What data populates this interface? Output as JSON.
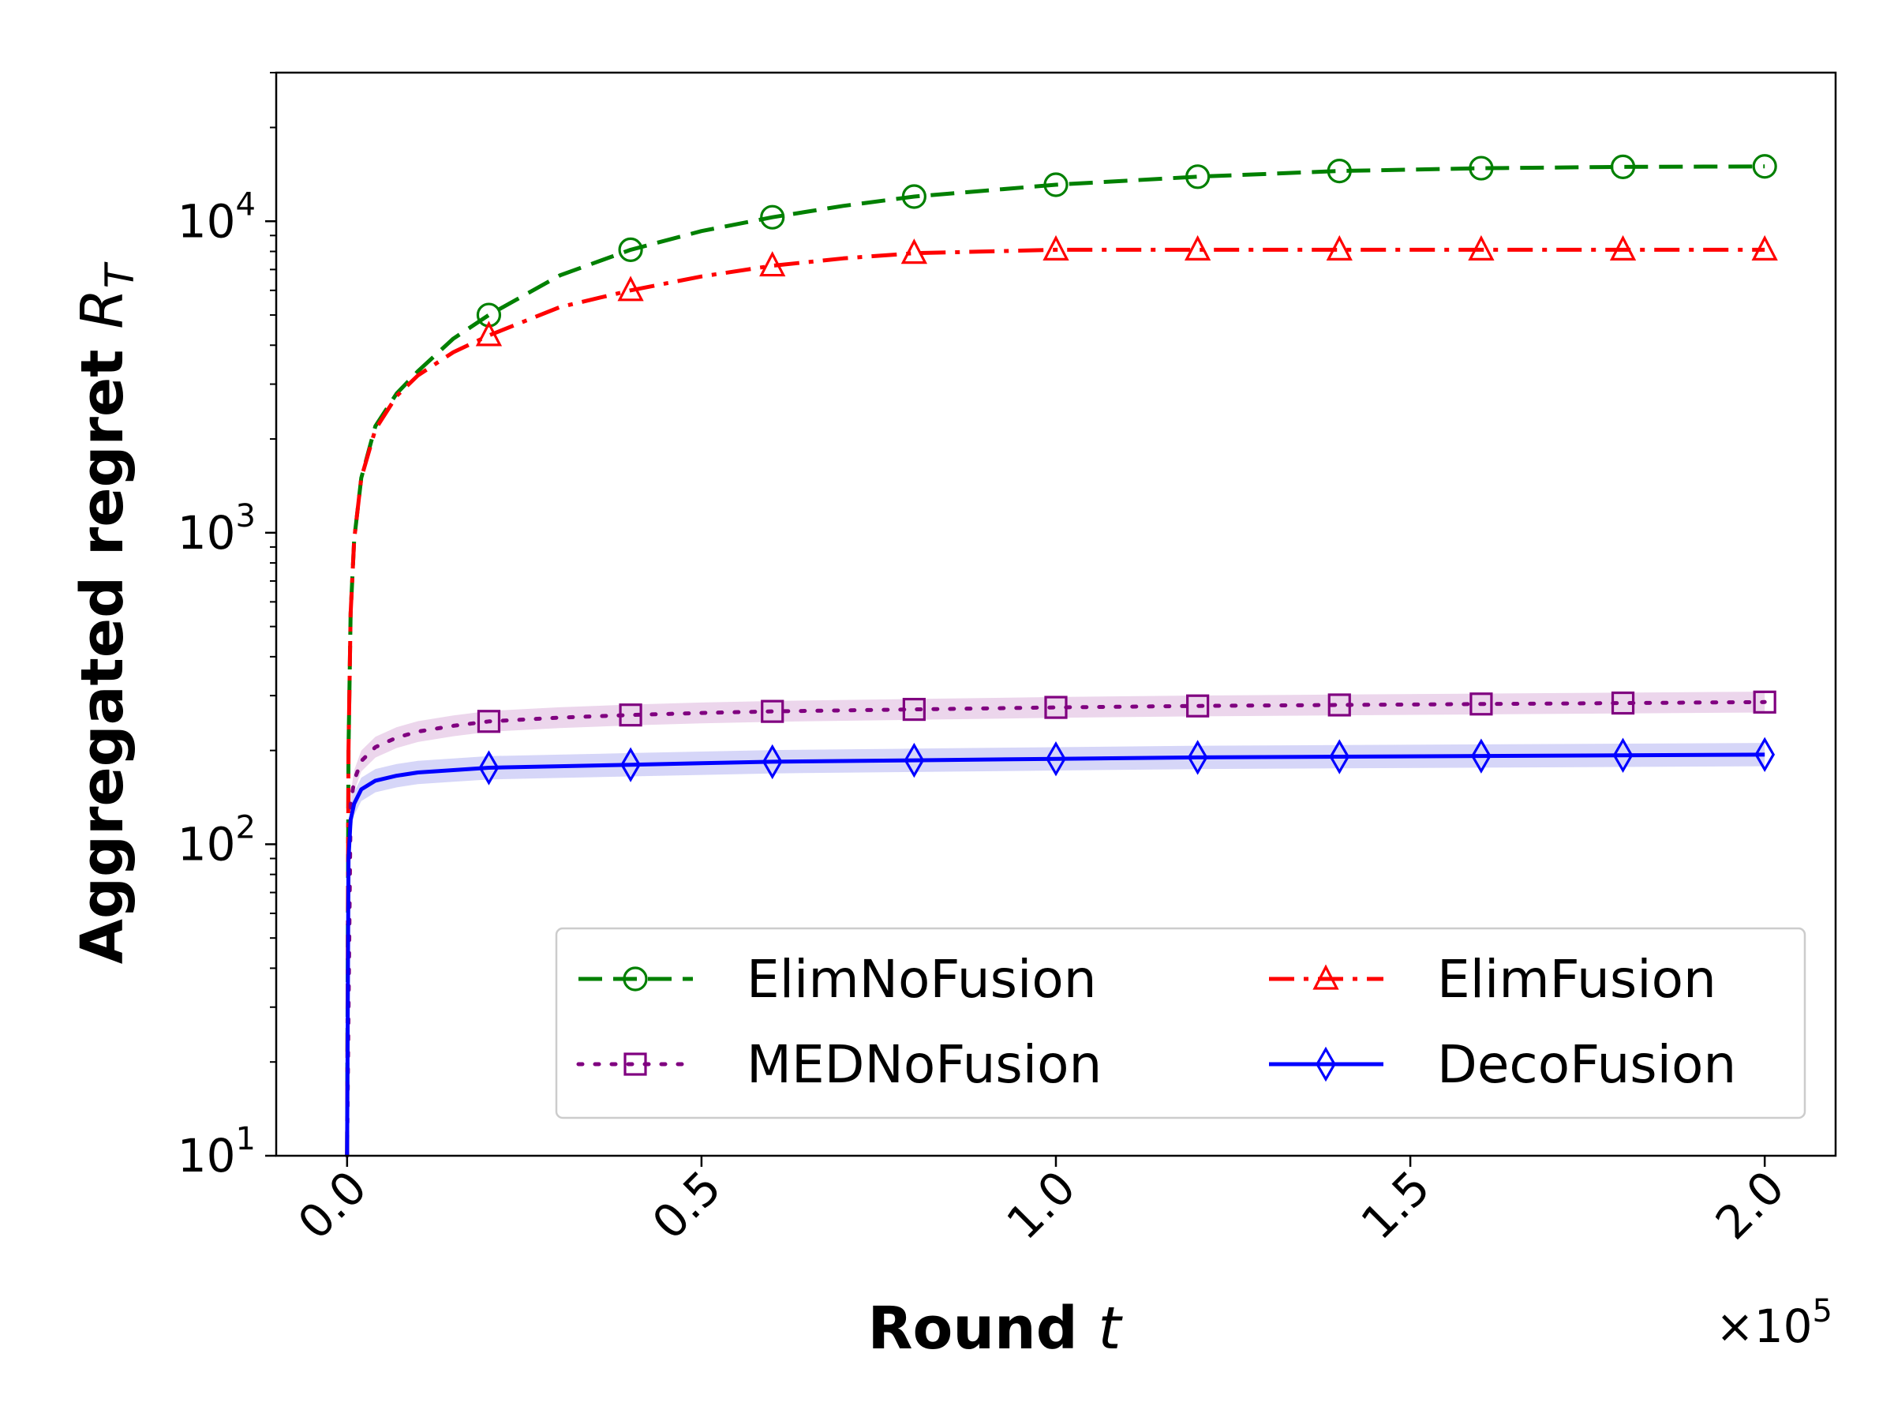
{
  "chart_data": {
    "type": "line",
    "xlabel": "Round",
    "xlabel_var": "t",
    "ylabel": "Aggregated regret",
    "ylabel_var": "R",
    "ylabel_sub": "T",
    "x_multiplier": "×10",
    "x_multiplier_exp": "5",
    "xscale": "linear",
    "yscale": "log",
    "xlim": [
      -0.1,
      2.1
    ],
    "ylim": [
      10,
      30000
    ],
    "x_ticks": [
      0.0,
      0.5,
      1.0,
      1.5,
      2.0
    ],
    "x_tick_labels": [
      "0.0",
      "0.5",
      "1.0",
      "1.5",
      "2.0"
    ],
    "y_ticks": [
      10,
      100,
      1000,
      10000
    ],
    "y_tick_labels": [
      {
        "base": "10",
        "exp": "1"
      },
      {
        "base": "10",
        "exp": "2"
      },
      {
        "base": "10",
        "exp": "3"
      },
      {
        "base": "10",
        "exp": "4"
      }
    ],
    "grid": false,
    "legend_position": "lower-right",
    "series": [
      {
        "name": "ElimNoFusion",
        "color": "#008000",
        "dash": "dashed",
        "marker": "circle",
        "x": [
          0,
          0.002,
          0.005,
          0.01,
          0.02,
          0.04,
          0.07,
          0.1,
          0.15,
          0.2,
          0.3,
          0.4,
          0.5,
          0.6,
          0.7,
          0.8,
          1.0,
          1.2,
          1.4,
          1.6,
          1.8,
          2.0
        ],
        "y": [
          10,
          200,
          550,
          950,
          1500,
          2200,
          2800,
          3300,
          4200,
          5000,
          6700,
          8100,
          9300,
          10300,
          11200,
          12000,
          13100,
          13900,
          14500,
          14800,
          14950,
          15000
        ],
        "marker_x": [
          0.2,
          0.4,
          0.6,
          0.8,
          1.0,
          1.2,
          1.4,
          1.6,
          1.8,
          2.0
        ],
        "marker_y": [
          5000,
          8100,
          10300,
          12000,
          13100,
          13900,
          14500,
          14800,
          14950,
          15000
        ]
      },
      {
        "name": "ElimFusion",
        "color": "#ff0000",
        "dash": "dashdot",
        "marker": "triangle",
        "x": [
          0,
          0.002,
          0.005,
          0.01,
          0.02,
          0.04,
          0.07,
          0.1,
          0.15,
          0.2,
          0.3,
          0.4,
          0.5,
          0.6,
          0.7,
          0.8,
          1.0,
          1.2,
          1.4,
          1.6,
          1.8,
          2.0
        ],
        "y": [
          10,
          200,
          550,
          950,
          1500,
          2150,
          2750,
          3200,
          3800,
          4300,
          5300,
          6000,
          6650,
          7200,
          7600,
          7900,
          8100,
          8100,
          8100,
          8100,
          8100,
          8100
        ],
        "marker_x": [
          0.2,
          0.4,
          0.6,
          0.8,
          1.0,
          1.2,
          1.4,
          1.6,
          1.8,
          2.0
        ],
        "marker_y": [
          4300,
          6000,
          7200,
          7900,
          8100,
          8100,
          8100,
          8100,
          8100,
          8100
        ]
      },
      {
        "name": "MEDNoFusion",
        "color": "#800080",
        "dash": "dotted",
        "marker": "square",
        "band_color": "#e6c8e6",
        "band_ratio": 1.08,
        "x": [
          0,
          0.005,
          0.01,
          0.02,
          0.04,
          0.07,
          0.1,
          0.15,
          0.2,
          0.3,
          0.4,
          0.5,
          0.6,
          0.8,
          1.0,
          1.2,
          1.4,
          1.6,
          1.8,
          2.0
        ],
        "y": [
          10,
          135,
          160,
          185,
          205,
          220,
          230,
          240,
          248,
          255,
          260,
          264,
          267,
          271,
          275,
          278,
          280,
          282,
          284,
          286
        ],
        "marker_x": [
          0.2,
          0.4,
          0.6,
          0.8,
          1.0,
          1.2,
          1.4,
          1.6,
          1.8,
          2.0
        ],
        "marker_y": [
          248,
          260,
          267,
          271,
          275,
          278,
          280,
          282,
          284,
          286
        ]
      },
      {
        "name": "DecoFusion",
        "color": "#0000ff",
        "dash": "solid",
        "marker": "diamond",
        "band_color": "#c8c8f5",
        "band_ratio": 1.09,
        "x": [
          0,
          0.002,
          0.005,
          0.01,
          0.02,
          0.04,
          0.07,
          0.1,
          0.15,
          0.2,
          0.3,
          0.4,
          0.5,
          0.6,
          0.8,
          1.0,
          1.2,
          1.4,
          1.6,
          1.8,
          2.0
        ],
        "y": [
          10,
          90,
          120,
          135,
          150,
          160,
          166,
          170,
          173,
          176,
          178,
          180,
          182,
          184,
          186,
          188,
          190,
          191,
          192,
          193,
          194
        ],
        "marker_x": [
          0.2,
          0.4,
          0.6,
          0.8,
          1.0,
          1.2,
          1.4,
          1.6,
          1.8,
          2.0
        ],
        "marker_y": [
          176,
          180,
          184,
          186,
          188,
          190,
          191,
          192,
          193,
          194
        ]
      }
    ],
    "legend_order": [
      0,
      1,
      2,
      3
    ]
  }
}
